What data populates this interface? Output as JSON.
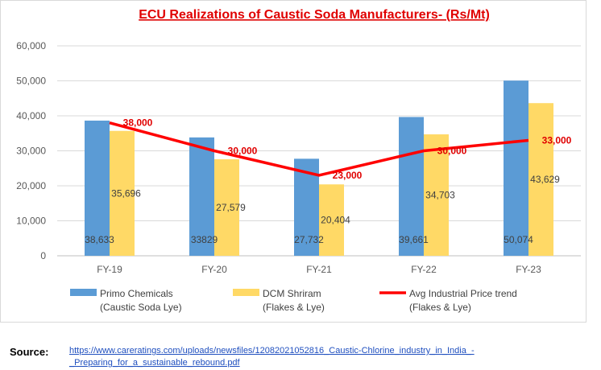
{
  "chart_data": {
    "type": "bar",
    "title": "ECU Realizations of Caustic Soda Manufacturers- (Rs/Mt)",
    "categories": [
      "FY-19",
      "FY-20",
      "FY-21",
      "FY-22",
      "FY-23"
    ],
    "ylim": [
      0,
      60000
    ],
    "yticks": [
      0,
      10000,
      20000,
      30000,
      40000,
      50000,
      60000
    ],
    "ytick_labels": [
      "0",
      "10,000",
      "20,000",
      "30,000",
      "40,000",
      "50,000",
      "60,000"
    ],
    "grid": true,
    "legend_position": "bottom",
    "series": [
      {
        "name": "Primo Chemicals (Caustic Soda Lye)",
        "legend_lines": [
          "Primo Chemicals",
          "(Caustic Soda Lye)"
        ],
        "kind": "bar",
        "color": "#5b9bd5",
        "values": [
          38633,
          33829,
          27732,
          39661,
          50074
        ],
        "labels": [
          "38,633",
          "33829",
          "27,732",
          "39,661",
          "50,074"
        ]
      },
      {
        "name": "DCM Shriram (Flakes & Lye)",
        "legend_lines": [
          "DCM Shriram",
          "(Flakes & Lye)"
        ],
        "kind": "bar",
        "color": "#ffd966",
        "values": [
          35696,
          27579,
          20404,
          34703,
          43629
        ],
        "labels": [
          "35,696",
          "27,579",
          "20,404",
          "34,703",
          "43,629"
        ]
      },
      {
        "name": "Avg Industrial Price trend (Flakes & Lye)",
        "legend_lines": [
          "Avg Industrial Price trend",
          "(Flakes & Lye)"
        ],
        "kind": "line",
        "color": "#ff0000",
        "values": [
          38000,
          30000,
          23000,
          30000,
          33000
        ],
        "labels": [
          "38,000",
          "30,000",
          "23,000",
          "30,000",
          "33,000"
        ]
      }
    ]
  },
  "footer": {
    "source_label": "Source:",
    "source_url_line1": "https://www.careratings.com/uploads/newsfiles/12082021052816_Caustic-Chlorine_industry_in_India_-",
    "source_url_line2": "_Preparing_for_a_sustainable_rebound.pdf"
  }
}
